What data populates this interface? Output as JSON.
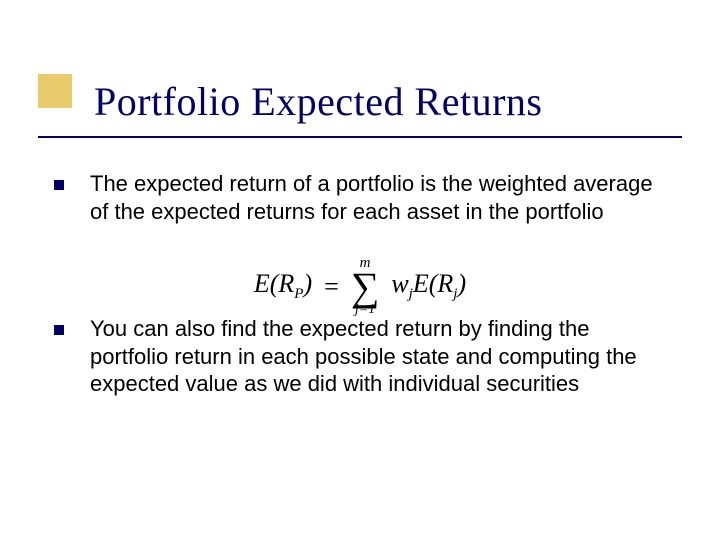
{
  "accent": {
    "color": "#e8cb6a"
  },
  "title": {
    "text": "Portfolio Expected Returns",
    "color": "#000066",
    "fontsize": 40
  },
  "underline_color": "#000066",
  "bullets": [
    {
      "text": "The expected return of a portfolio is the weighted average of the expected returns for each asset in the portfolio"
    },
    {
      "text": "You can also find the expected return by finding the portfolio return in each possible state and computing the expected value as we did with individual securities"
    }
  ],
  "bullet_marker_color": "#000066",
  "formula": {
    "lhs_func": "E",
    "lhs_arg": "R",
    "lhs_sub": "P",
    "sum_upper": "m",
    "sum_lower": "j=1",
    "coef": "w",
    "coef_sub": "j",
    "rhs_func": "E",
    "rhs_arg": "R",
    "rhs_sub": "j"
  },
  "body_fontsize": 22,
  "background_color": "#ffffff"
}
